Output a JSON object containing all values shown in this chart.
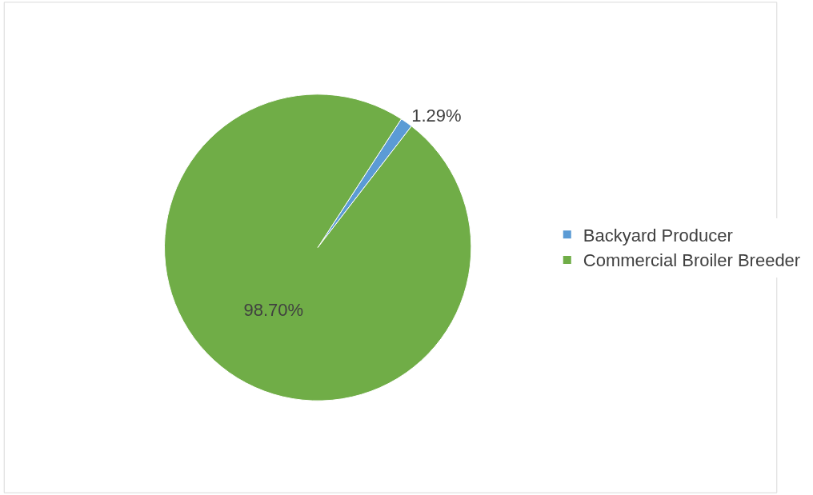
{
  "chart_data": {
    "type": "pie",
    "categories": [
      "Backyard Producer",
      "Commercial Broiler Breeder"
    ],
    "values": [
      1.29,
      98.7
    ],
    "colors": [
      "#5b9bd5",
      "#70ad47"
    ],
    "value_labels": [
      "1.29%",
      "98.70%"
    ],
    "legend": "right"
  }
}
